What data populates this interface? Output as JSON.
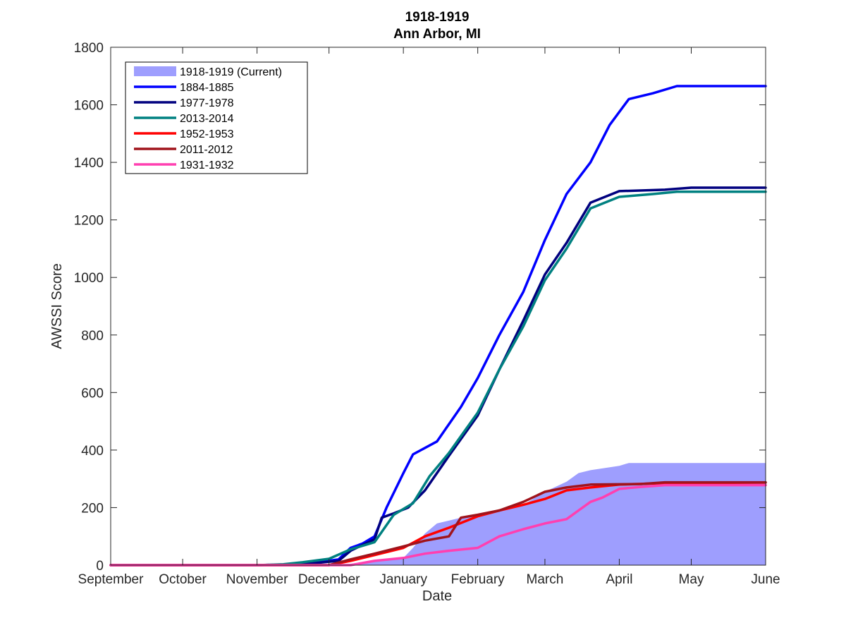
{
  "chart_data": {
    "type": "line",
    "title": "1918-1919",
    "subtitle": "Ann Arbor, MI",
    "xlabel": "Date",
    "ylabel": "AWSSI Score",
    "ylim": [
      0,
      1800
    ],
    "yticks": [
      0,
      200,
      400,
      600,
      800,
      1000,
      1200,
      1400,
      1600,
      1800
    ],
    "x_type": "date",
    "xlim": [
      "Sep 1",
      "Jun 1"
    ],
    "xticks": [
      {
        "label": "September",
        "date": "Sep 1"
      },
      {
        "label": "October",
        "date": "Oct 1"
      },
      {
        "label": "November",
        "date": "Nov 1"
      },
      {
        "label": "December",
        "date": "Dec 1"
      },
      {
        "label": "January",
        "date": "Jan 1"
      },
      {
        "label": "February",
        "date": "Feb 1"
      },
      {
        "label": "March",
        "date": "Mar 1"
      },
      {
        "label": "April",
        "date": "Apr 1"
      },
      {
        "label": "May",
        "date": "May 1"
      },
      {
        "label": "June",
        "date": "Jun 1"
      }
    ],
    "grid": false,
    "legend_position": "top-left",
    "area": {
      "name": "1918-1919 (Current)",
      "color": "#9e9efe",
      "points": [
        [
          "Sep 1",
          0
        ],
        [
          "Nov 15",
          0
        ],
        [
          "Dec 1",
          0
        ],
        [
          "Dec 10",
          5
        ],
        [
          "Dec 20",
          15
        ],
        [
          "Jan 1",
          25
        ],
        [
          "Jan 5",
          60
        ],
        [
          "Jan 10",
          110
        ],
        [
          "Jan 15",
          145
        ],
        [
          "Jan 25",
          165
        ],
        [
          "Feb 5",
          180
        ],
        [
          "Feb 20",
          210
        ],
        [
          "Mar 1",
          255
        ],
        [
          "Mar 10",
          290
        ],
        [
          "Mar 15",
          320
        ],
        [
          "Mar 20",
          330
        ],
        [
          "Apr 1",
          345
        ],
        [
          "Apr 5",
          355
        ],
        [
          "Jun 1",
          355
        ]
      ]
    },
    "series": [
      {
        "name": "1884-1885",
        "color": "#0000ff",
        "points": [
          [
            "Sep 1",
            0
          ],
          [
            "Nov 1",
            0
          ],
          [
            "Nov 20",
            3
          ],
          [
            "Dec 5",
            20
          ],
          [
            "Dec 10",
            60
          ],
          [
            "Dec 15",
            75
          ],
          [
            "Dec 20",
            100
          ],
          [
            "Dec 25",
            200
          ],
          [
            "Jan 1",
            320
          ],
          [
            "Jan 5",
            385
          ],
          [
            "Jan 15",
            430
          ],
          [
            "Jan 25",
            550
          ],
          [
            "Feb 1",
            650
          ],
          [
            "Feb 10",
            800
          ],
          [
            "Feb 20",
            950
          ],
          [
            "Mar 1",
            1130
          ],
          [
            "Mar 10",
            1290
          ],
          [
            "Mar 20",
            1400
          ],
          [
            "Mar 28",
            1530
          ],
          [
            "Apr 5",
            1620
          ],
          [
            "Apr 15",
            1640
          ],
          [
            "Apr 25",
            1665
          ],
          [
            "Jun 1",
            1665
          ]
        ]
      },
      {
        "name": "1977-1978",
        "color": "#00007f",
        "points": [
          [
            "Sep 1",
            0
          ],
          [
            "Nov 1",
            0
          ],
          [
            "Nov 20",
            3
          ],
          [
            "Dec 5",
            15
          ],
          [
            "Dec 10",
            50
          ],
          [
            "Dec 20",
            90
          ],
          [
            "Dec 23",
            165
          ],
          [
            "Dec 28",
            180
          ],
          [
            "Jan 3",
            200
          ],
          [
            "Jan 10",
            260
          ],
          [
            "Jan 20",
            380
          ],
          [
            "Feb 1",
            520
          ],
          [
            "Feb 10",
            680
          ],
          [
            "Feb 20",
            850
          ],
          [
            "Mar 1",
            1010
          ],
          [
            "Mar 10",
            1120
          ],
          [
            "Mar 20",
            1260
          ],
          [
            "Apr 1",
            1300
          ],
          [
            "Apr 20",
            1305
          ],
          [
            "May 1",
            1312
          ],
          [
            "Jun 1",
            1312
          ]
        ]
      },
      {
        "name": "2013-2014",
        "color": "#008080",
        "points": [
          [
            "Sep 1",
            0
          ],
          [
            "Nov 1",
            0
          ],
          [
            "Nov 12",
            3
          ],
          [
            "Nov 20",
            10
          ],
          [
            "Dec 1",
            22
          ],
          [
            "Dec 10",
            55
          ],
          [
            "Dec 20",
            80
          ],
          [
            "Dec 28",
            175
          ],
          [
            "Jan 5",
            215
          ],
          [
            "Jan 12",
            310
          ],
          [
            "Jan 20",
            390
          ],
          [
            "Feb 1",
            530
          ],
          [
            "Feb 10",
            680
          ],
          [
            "Feb 20",
            830
          ],
          [
            "Mar 1",
            990
          ],
          [
            "Mar 10",
            1100
          ],
          [
            "Mar 20",
            1240
          ],
          [
            "Apr 1",
            1280
          ],
          [
            "Apr 15",
            1290
          ],
          [
            "Apr 25",
            1298
          ],
          [
            "Jun 1",
            1298
          ]
        ]
      },
      {
        "name": "1952-1953",
        "color": "#ff0000",
        "points": [
          [
            "Sep 1",
            0
          ],
          [
            "Dec 1",
            0
          ],
          [
            "Dec 10",
            15
          ],
          [
            "Dec 20",
            35
          ],
          [
            "Jan 1",
            60
          ],
          [
            "Jan 10",
            100
          ],
          [
            "Jan 20",
            130
          ],
          [
            "Feb 1",
            170
          ],
          [
            "Feb 10",
            190
          ],
          [
            "Feb 20",
            210
          ],
          [
            "Mar 1",
            230
          ],
          [
            "Mar 10",
            260
          ],
          [
            "Mar 20",
            270
          ],
          [
            "Apr 1",
            280
          ],
          [
            "Apr 20",
            285
          ],
          [
            "Jun 1",
            287
          ]
        ]
      },
      {
        "name": "2011-2012",
        "color": "#a0141c",
        "points": [
          [
            "Sep 1",
            0
          ],
          [
            "Dec 1",
            0
          ],
          [
            "Dec 10",
            20
          ],
          [
            "Dec 20",
            40
          ],
          [
            "Jan 1",
            65
          ],
          [
            "Jan 10",
            85
          ],
          [
            "Jan 20",
            100
          ],
          [
            "Jan 25",
            165
          ],
          [
            "Feb 1",
            175
          ],
          [
            "Feb 10",
            190
          ],
          [
            "Feb 20",
            220
          ],
          [
            "Mar 1",
            255
          ],
          [
            "Mar 10",
            270
          ],
          [
            "Mar 20",
            280
          ],
          [
            "Apr 10",
            282
          ],
          [
            "Apr 20",
            288
          ],
          [
            "Jun 1",
            288
          ]
        ]
      },
      {
        "name": "1931-1932",
        "color": "#ff3fb0",
        "points": [
          [
            "Sep 1",
            0
          ],
          [
            "Dec 10",
            0
          ],
          [
            "Dec 20",
            15
          ],
          [
            "Jan 1",
            25
          ],
          [
            "Jan 10",
            40
          ],
          [
            "Jan 20",
            50
          ],
          [
            "Feb 1",
            60
          ],
          [
            "Feb 10",
            100
          ],
          [
            "Feb 20",
            125
          ],
          [
            "Mar 1",
            145
          ],
          [
            "Mar 10",
            160
          ],
          [
            "Mar 15",
            190
          ],
          [
            "Mar 20",
            220
          ],
          [
            "Mar 25",
            235
          ],
          [
            "Apr 1",
            265
          ],
          [
            "Apr 10",
            272
          ],
          [
            "Apr 20",
            278
          ],
          [
            "Jun 1",
            278
          ]
        ]
      }
    ]
  }
}
